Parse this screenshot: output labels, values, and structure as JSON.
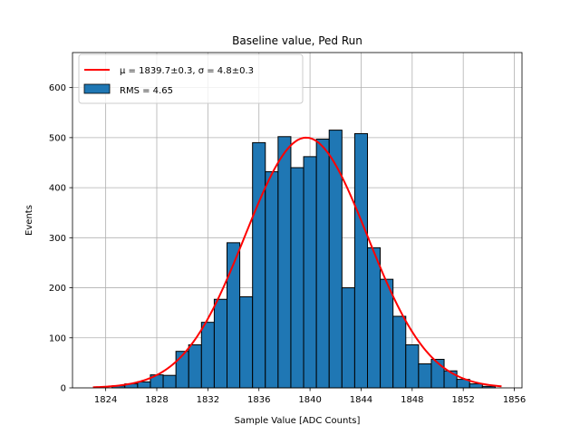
{
  "chart_data": {
    "type": "bar",
    "title": "Baseline value, Ped Run",
    "xlabel": "Sample Value [ADC Counts]",
    "ylabel": "Events",
    "xlim": [
      1821.4,
      1856.6
    ],
    "ylim": [
      0,
      670
    ],
    "xticks": [
      1824,
      1828,
      1832,
      1836,
      1840,
      1844,
      1848,
      1852,
      1856
    ],
    "yticks": [
      0,
      100,
      200,
      300,
      400,
      500,
      600
    ],
    "grid": true,
    "legend_position": "top-left",
    "histogram": {
      "bin_width": 1,
      "bars": [
        {
          "x": 1825,
          "y": 4
        },
        {
          "x": 1826,
          "y": 8
        },
        {
          "x": 1827,
          "y": 12
        },
        {
          "x": 1828,
          "y": 26
        },
        {
          "x": 1829,
          "y": 25
        },
        {
          "x": 1830,
          "y": 73
        },
        {
          "x": 1831,
          "y": 86
        },
        {
          "x": 1832,
          "y": 131
        },
        {
          "x": 1833,
          "y": 177
        },
        {
          "x": 1834,
          "y": 290
        },
        {
          "x": 1835,
          "y": 182
        },
        {
          "x": 1836,
          "y": 490
        },
        {
          "x": 1837,
          "y": 432
        },
        {
          "x": 1838,
          "y": 502
        },
        {
          "x": 1839,
          "y": 440
        },
        {
          "x": 1840,
          "y": 462
        },
        {
          "x": 1841,
          "y": 497
        },
        {
          "x": 1842,
          "y": 515
        },
        {
          "x": 1843,
          "y": 200
        },
        {
          "x": 1844,
          "y": 508
        },
        {
          "x": 1845,
          "y": 280
        },
        {
          "x": 1846,
          "y": 217
        },
        {
          "x": 1847,
          "y": 143
        },
        {
          "x": 1848,
          "y": 86
        },
        {
          "x": 1849,
          "y": 48
        },
        {
          "x": 1850,
          "y": 57
        },
        {
          "x": 1851,
          "y": 34
        },
        {
          "x": 1852,
          "y": 17
        },
        {
          "x": 1853,
          "y": 8
        },
        {
          "x": 1854,
          "y": 3
        }
      ],
      "fill_color": "#1f77b4",
      "edge_color": "#000000"
    },
    "fit": {
      "type": "gaussian",
      "mu": 1839.7,
      "sigma": 4.8,
      "amplitude": 500,
      "x_range": [
        1823,
        1855
      ],
      "color": "#ff0000"
    },
    "legend": [
      {
        "label": "μ = 1839.7±0.3, σ = 4.8±0.3",
        "kind": "line",
        "color": "#ff0000"
      },
      {
        "label": "RMS = 4.65",
        "kind": "patch",
        "color": "#1f77b4"
      }
    ]
  }
}
